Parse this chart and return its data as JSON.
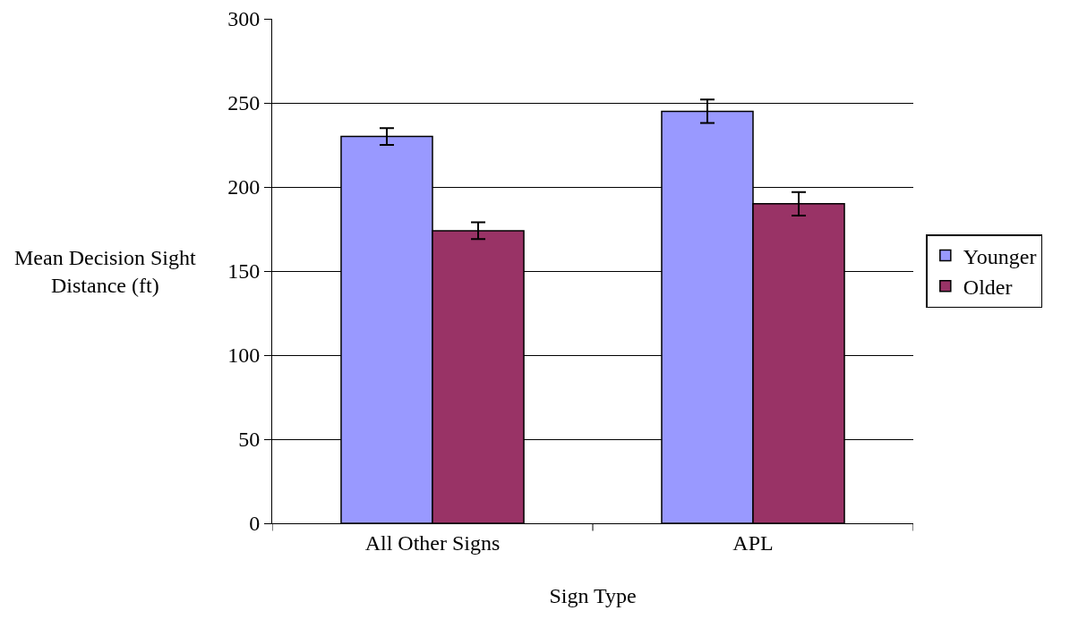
{
  "chart_data": {
    "type": "bar",
    "xlabel": "Sign Type",
    "ylabel": "Mean Decision Sight Distance (ft)",
    "categories": [
      "All Other Signs",
      "APL"
    ],
    "series": [
      {
        "name": "Younger",
        "color": "#9999ff",
        "values": [
          230,
          245
        ],
        "errors": [
          5,
          7
        ]
      },
      {
        "name": "Older",
        "color": "#993366",
        "values": [
          174,
          190
        ],
        "errors": [
          5,
          7
        ]
      }
    ],
    "ylim": [
      0,
      300
    ],
    "yticks": [
      0,
      50,
      100,
      150,
      200,
      250,
      300
    ],
    "grid": "y",
    "legend": "right"
  }
}
